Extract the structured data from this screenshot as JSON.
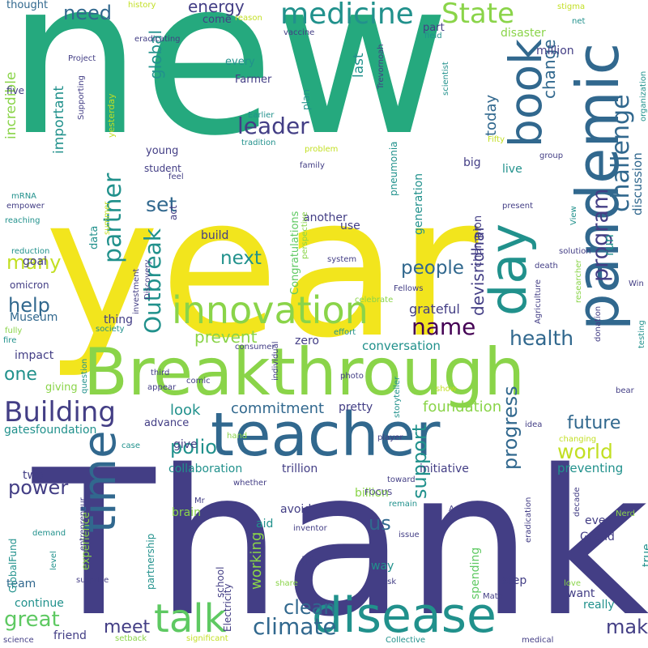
{
  "colors": {
    "background": "#ffffff",
    "dark_purple": "#440154",
    "indigo": "#433e85",
    "blue": "#31688e",
    "teal": "#21918c",
    "green": "#25a97e",
    "light_green": "#5ec962",
    "lime": "#8ad449",
    "yellow_green": "#c2df23",
    "yellow": "#f2e51d"
  },
  "words": [
    {
      "text": "new",
      "color": "green"
    },
    {
      "text": "year",
      "color": "yellow"
    },
    {
      "text": "Thank",
      "color": "indigo"
    },
    {
      "text": "Breakthrough",
      "color": "lime"
    },
    {
      "text": "teacher",
      "color": "blue"
    },
    {
      "text": "disease",
      "color": "teal"
    },
    {
      "text": "pandemic",
      "color": "blue"
    },
    {
      "text": "day",
      "color": "teal"
    },
    {
      "text": "book",
      "color": "blue"
    },
    {
      "text": "time",
      "color": "blue"
    },
    {
      "text": "talk",
      "color": "light_green"
    },
    {
      "text": "innovation",
      "color": "lime"
    },
    {
      "text": "medicine",
      "color": "teal"
    },
    {
      "text": "challenge",
      "color": "blue"
    },
    {
      "text": "program",
      "color": "indigo"
    },
    {
      "text": "Building",
      "color": "indigo"
    },
    {
      "text": "State",
      "color": "lime"
    },
    {
      "text": "partner",
      "color": "teal"
    },
    {
      "text": "leader",
      "color": "indigo"
    },
    {
      "text": "Outbreak",
      "color": "teal"
    },
    {
      "text": "name",
      "color": "dark_purple"
    },
    {
      "text": "climate",
      "color": "blue"
    },
    {
      "text": "make",
      "color": "indigo"
    },
    {
      "text": "health",
      "color": "blue"
    },
    {
      "text": "progress",
      "color": "blue"
    },
    {
      "text": "world",
      "color": "yellow_green"
    },
    {
      "text": "future",
      "color": "blue"
    },
    {
      "text": "polio",
      "color": "teal"
    },
    {
      "text": "support",
      "color": "teal"
    },
    {
      "text": "great",
      "color": "light_green"
    },
    {
      "text": "people",
      "color": "blue"
    },
    {
      "text": "power",
      "color": "indigo"
    },
    {
      "text": "clean",
      "color": "blue"
    },
    {
      "text": "meet",
      "color": "indigo"
    },
    {
      "text": "set",
      "color": "blue"
    },
    {
      "text": "help",
      "color": "blue"
    },
    {
      "text": "many",
      "color": "yellow_green"
    },
    {
      "text": "next",
      "color": "teal"
    },
    {
      "text": "global",
      "color": "teal"
    },
    {
      "text": "need",
      "color": "blue"
    },
    {
      "text": "energy",
      "color": "indigo"
    },
    {
      "text": "devisridhar",
      "color": "indigo"
    },
    {
      "text": "commitment",
      "color": "blue"
    },
    {
      "text": "change",
      "color": "blue"
    },
    {
      "text": "foundation",
      "color": "lime"
    },
    {
      "text": "one",
      "color": "teal"
    },
    {
      "text": "us",
      "color": "blue"
    },
    {
      "text": "prevent",
      "color": "lime"
    },
    {
      "text": "look",
      "color": "teal"
    },
    {
      "text": "working",
      "color": "lime"
    },
    {
      "text": "today",
      "color": "blue"
    },
    {
      "text": "important",
      "color": "teal"
    },
    {
      "text": "incredible",
      "color": "lime"
    },
    {
      "text": "last",
      "color": "teal"
    },
    {
      "text": "run",
      "color": "teal"
    },
    {
      "text": "discussion",
      "color": "blue"
    },
    {
      "text": "grateful",
      "color": "indigo"
    },
    {
      "text": "conversation",
      "color": "teal"
    },
    {
      "text": "preventing",
      "color": "teal"
    },
    {
      "text": "collaboration",
      "color": "teal"
    },
    {
      "text": "trillion",
      "color": "indigo"
    },
    {
      "text": "initiative",
      "color": "indigo"
    },
    {
      "text": "Museum",
      "color": "blue"
    },
    {
      "text": "life",
      "color": "indigo"
    },
    {
      "text": "generation",
      "color": "teal"
    },
    {
      "text": "champion",
      "color": "indigo"
    },
    {
      "text": "Congratulations",
      "color": "light_green"
    },
    {
      "text": "another",
      "color": "indigo"
    },
    {
      "text": "give",
      "color": "indigo"
    },
    {
      "text": "pretty",
      "color": "indigo"
    },
    {
      "text": "step",
      "color": "indigo"
    },
    {
      "text": "billion",
      "color": "lime"
    },
    {
      "text": "two",
      "color": "indigo"
    },
    {
      "text": "gatesfoundation",
      "color": "teal"
    },
    {
      "text": "continue",
      "color": "teal"
    },
    {
      "text": "friend",
      "color": "indigo"
    },
    {
      "text": "team",
      "color": "blue"
    },
    {
      "text": "way",
      "color": "teal"
    },
    {
      "text": "avoid",
      "color": "indigo"
    },
    {
      "text": "aid",
      "color": "teal"
    },
    {
      "text": "want",
      "color": "indigo"
    },
    {
      "text": "really",
      "color": "teal"
    },
    {
      "text": "spending",
      "color": "light_green"
    },
    {
      "text": "even",
      "color": "indigo"
    },
    {
      "text": "Grand",
      "color": "indigo"
    },
    {
      "text": "true",
      "color": "teal"
    },
    {
      "text": "advance",
      "color": "indigo"
    },
    {
      "text": "thing",
      "color": "indigo"
    },
    {
      "text": "zero",
      "color": "indigo"
    },
    {
      "text": "impact",
      "color": "indigo"
    },
    {
      "text": "giving",
      "color": "lime"
    },
    {
      "text": "goal",
      "color": "indigo"
    },
    {
      "text": "use",
      "color": "indigo"
    },
    {
      "text": "build",
      "color": "indigo"
    },
    {
      "text": "big",
      "color": "indigo"
    },
    {
      "text": "live",
      "color": "teal"
    },
    {
      "text": "million",
      "color": "indigo"
    },
    {
      "text": "disaster",
      "color": "lime"
    },
    {
      "text": "part",
      "color": "indigo"
    },
    {
      "text": "young",
      "color": "indigo"
    },
    {
      "text": "student",
      "color": "indigo"
    },
    {
      "text": "Farmer",
      "color": "indigo"
    },
    {
      "text": "every",
      "color": "teal"
    },
    {
      "text": "come",
      "color": "indigo"
    },
    {
      "text": "thought",
      "color": "blue"
    },
    {
      "text": "five",
      "color": "indigo"
    },
    {
      "text": "data",
      "color": "teal"
    },
    {
      "text": "act",
      "color": "indigo"
    },
    {
      "text": "experience",
      "color": "lime"
    },
    {
      "text": "partnership",
      "color": "teal"
    },
    {
      "text": "school",
      "color": "indigo"
    },
    {
      "text": "brain",
      "color": "lime"
    },
    {
      "text": "pneumonia",
      "color": "teal"
    },
    {
      "text": "plan",
      "color": "teal"
    },
    {
      "text": "omicron",
      "color": "indigo"
    },
    {
      "text": "GlobalFund",
      "color": "teal"
    },
    {
      "text": "Electricity",
      "color": "indigo"
    },
    {
      "text": "history",
      "color": "yellow_green"
    },
    {
      "text": "reason",
      "color": "yellow_green"
    },
    {
      "text": "stigma",
      "color": "yellow_green"
    },
    {
      "text": "net",
      "color": "teal"
    },
    {
      "text": "vaccine",
      "color": "indigo"
    },
    {
      "text": "eradicating",
      "color": "indigo"
    },
    {
      "text": "Project",
      "color": "indigo"
    },
    {
      "text": "field",
      "color": "teal"
    },
    {
      "text": "scientist",
      "color": "teal"
    },
    {
      "text": "Trevornoah",
      "color": "indigo"
    },
    {
      "text": "Supporting",
      "color": "indigo"
    },
    {
      "text": "yesterday",
      "color": "yellow_green"
    },
    {
      "text": "Earlier",
      "color": "teal"
    },
    {
      "text": "tradition",
      "color": "teal"
    },
    {
      "text": "Fifty",
      "color": "yellow_green"
    },
    {
      "text": "organization",
      "color": "teal"
    },
    {
      "text": "problem",
      "color": "yellow_green"
    },
    {
      "text": "family",
      "color": "indigo"
    },
    {
      "text": "group",
      "color": "indigo"
    },
    {
      "text": "feel",
      "color": "indigo"
    },
    {
      "text": "mRNA",
      "color": "teal"
    },
    {
      "text": "empower",
      "color": "indigo"
    },
    {
      "text": "View",
      "color": "teal"
    },
    {
      "text": "present",
      "color": "indigo"
    },
    {
      "text": "reaching",
      "color": "teal"
    },
    {
      "text": "summer",
      "color": "yellow_green"
    },
    {
      "text": "perspective",
      "color": "lime"
    },
    {
      "text": "reduction",
      "color": "teal"
    },
    {
      "text": "investment",
      "color": "indigo"
    },
    {
      "text": "solution",
      "color": "indigo"
    },
    {
      "text": "Discovery",
      "color": "indigo"
    },
    {
      "text": "system",
      "color": "indigo"
    },
    {
      "text": "death",
      "color": "indigo"
    },
    {
      "text": "Agriculture",
      "color": "indigo"
    },
    {
      "text": "researcher",
      "color": "lime"
    },
    {
      "text": "Win",
      "color": "indigo"
    },
    {
      "text": "Fellows",
      "color": "indigo"
    },
    {
      "text": "celebrate",
      "color": "lime"
    },
    {
      "text": "fully",
      "color": "lime"
    },
    {
      "text": "fire",
      "color": "teal"
    },
    {
      "text": "society",
      "color": "teal"
    },
    {
      "text": "effort",
      "color": "teal"
    },
    {
      "text": "donation",
      "color": "indigo"
    },
    {
      "text": "consumer",
      "color": "indigo"
    },
    {
      "text": "testing",
      "color": "teal"
    },
    {
      "text": "individual",
      "color": "indigo"
    },
    {
      "text": "question",
      "color": "teal"
    },
    {
      "text": "third",
      "color": "indigo"
    },
    {
      "text": "comic",
      "color": "indigo"
    },
    {
      "text": "appear",
      "color": "indigo"
    },
    {
      "text": "photo",
      "color": "indigo"
    },
    {
      "text": "show",
      "color": "yellow_green"
    },
    {
      "text": "storyteller",
      "color": "teal"
    },
    {
      "text": "bear",
      "color": "indigo"
    },
    {
      "text": "idea",
      "color": "indigo"
    },
    {
      "text": "case",
      "color": "teal"
    },
    {
      "text": "hand",
      "color": "lime"
    },
    {
      "text": "player",
      "color": "indigo"
    },
    {
      "text": "changing",
      "color": "yellow_green"
    },
    {
      "text": "toward",
      "color": "indigo"
    },
    {
      "text": "decade",
      "color": "indigo"
    },
    {
      "text": "whether",
      "color": "indigo"
    },
    {
      "text": "FOCUS",
      "color": "indigo"
    },
    {
      "text": "remain",
      "color": "teal"
    },
    {
      "text": "Mr",
      "color": "indigo"
    },
    {
      "text": "inventor",
      "color": "indigo"
    },
    {
      "text": "entrepreneur",
      "color": "indigo"
    },
    {
      "text": "Art",
      "color": "indigo"
    },
    {
      "text": "eradication",
      "color": "indigo"
    },
    {
      "text": "Nerd",
      "color": "lime"
    },
    {
      "text": "demand",
      "color": "teal"
    },
    {
      "text": "level",
      "color": "teal"
    },
    {
      "text": "issue",
      "color": "indigo"
    },
    {
      "text": "love",
      "color": "lime"
    },
    {
      "text": "surprise",
      "color": "indigo"
    },
    {
      "text": "ask",
      "color": "indigo"
    },
    {
      "text": "Math",
      "color": "indigo"
    },
    {
      "text": "share",
      "color": "lime"
    },
    {
      "text": "science",
      "color": "indigo"
    },
    {
      "text": "setback",
      "color": "lime"
    },
    {
      "text": "significant",
      "color": "yellow_green"
    },
    {
      "text": "Collective",
      "color": "teal"
    },
    {
      "text": "medical",
      "color": "indigo"
    }
  ]
}
